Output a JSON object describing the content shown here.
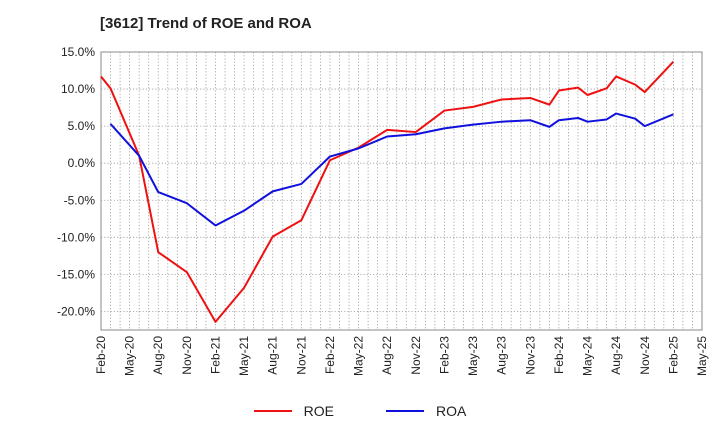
{
  "chart_data": {
    "type": "line",
    "title": "[3612]  Trend of ROE and ROA",
    "xlabel": "",
    "ylabel": "",
    "ylim": [
      -22.5,
      15
    ],
    "yticks": [
      15,
      10,
      5,
      0,
      -5,
      -10,
      -15,
      -20
    ],
    "ytick_labels": [
      "15.0%",
      "10.0%",
      "5.0%",
      "0.0%",
      "-5.0%",
      "-10.0%",
      "-15.0%",
      "-20.0%"
    ],
    "xticks": [
      "Feb-20",
      "May-20",
      "Aug-20",
      "Nov-20",
      "Feb-21",
      "May-21",
      "Aug-21",
      "Nov-21",
      "Feb-22",
      "May-22",
      "Aug-22",
      "Nov-22",
      "Feb-23",
      "May-23",
      "Aug-23",
      "Nov-23",
      "Feb-24",
      "May-24",
      "Aug-24",
      "Nov-24",
      "Feb-25",
      "May-25"
    ],
    "grid": true,
    "legend_position": "bottom-center",
    "series": [
      {
        "name": "ROE",
        "color": "#ee1111",
        "x": [
          "Feb-20",
          "Mar-20",
          "Jun-20",
          "Aug-20",
          "Nov-20",
          "Feb-21",
          "May-21",
          "Aug-21",
          "Nov-21",
          "Feb-22",
          "May-22",
          "Aug-22",
          "Nov-22",
          "Feb-23",
          "May-23",
          "Aug-23",
          "Nov-23",
          "Jan-24",
          "Feb-24",
          "Apr-24",
          "May-24",
          "Jul-24",
          "Aug-24",
          "Oct-24",
          "Nov-24",
          "Feb-25"
        ],
        "values": [
          11.7,
          10.1,
          1.0,
          -12.0,
          -14.7,
          -21.4,
          -16.8,
          -9.9,
          -7.7,
          0.4,
          2.1,
          4.5,
          4.2,
          7.1,
          7.6,
          8.6,
          8.8,
          7.9,
          9.8,
          10.2,
          9.2,
          10.1,
          11.7,
          10.6,
          9.6,
          13.7
        ]
      },
      {
        "name": "ROA",
        "color": "#1111dd",
        "x": [
          "Mar-20",
          "Jun-20",
          "Aug-20",
          "Nov-20",
          "Feb-21",
          "May-21",
          "Aug-21",
          "Nov-21",
          "Feb-22",
          "May-22",
          "Aug-22",
          "Nov-22",
          "Feb-23",
          "May-23",
          "Aug-23",
          "Nov-23",
          "Jan-24",
          "Feb-24",
          "Apr-24",
          "May-24",
          "Jul-24",
          "Aug-24",
          "Oct-24",
          "Nov-24",
          "Feb-25"
        ],
        "values": [
          5.3,
          1.0,
          -3.9,
          -5.4,
          -8.4,
          -6.4,
          -3.8,
          -2.8,
          0.9,
          2.0,
          3.6,
          3.9,
          4.7,
          5.2,
          5.6,
          5.8,
          4.9,
          5.8,
          6.1,
          5.6,
          5.9,
          6.7,
          6.0,
          5.0,
          6.6
        ]
      }
    ]
  }
}
